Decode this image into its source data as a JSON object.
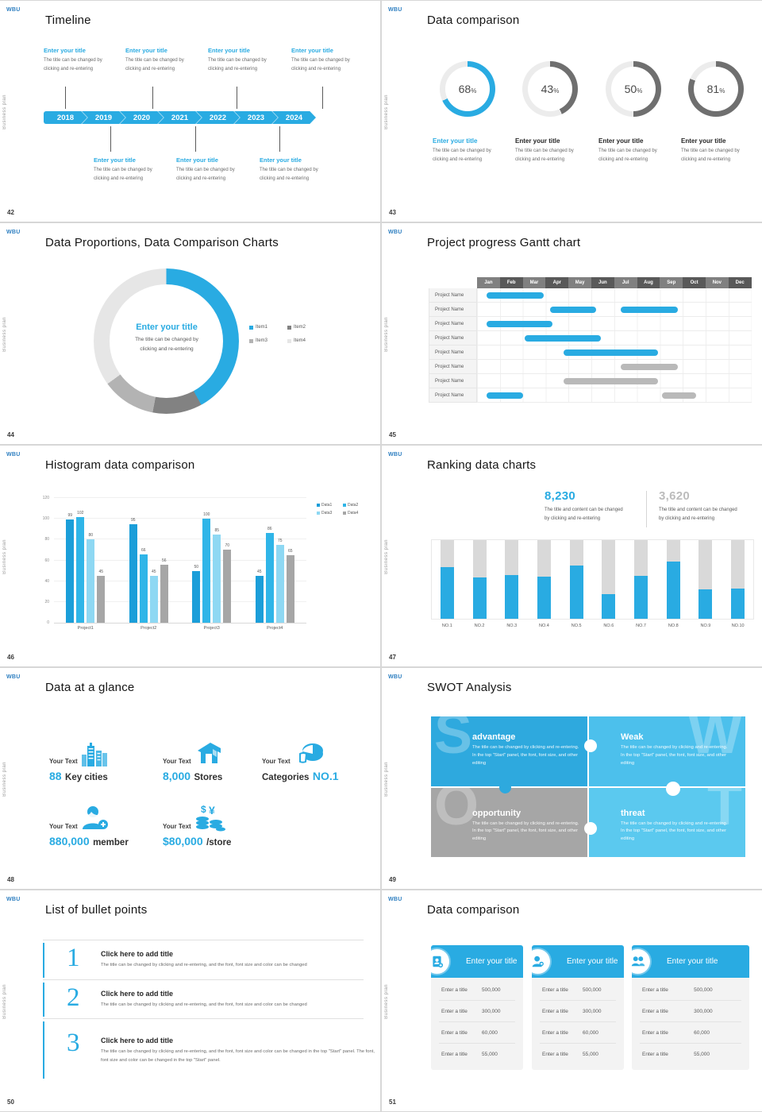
{
  "logo": "WBU",
  "side_label": "Business plan",
  "colors": {
    "accent": "#29abe2",
    "gray_bar": "#b9b9b9",
    "ring_track": "#ececec",
    "ring_gray": "#6f6f6f"
  },
  "placeholder": {
    "title": "Enter your title",
    "body_line1": "The title can be changed by",
    "body_line2": "clicking and re-entering"
  },
  "slides": {
    "s42": {
      "number": "42",
      "title": "Timeline",
      "years": [
        "2018",
        "2019",
        "2020",
        "2021",
        "2022",
        "2023",
        "2024"
      ],
      "entry_title": "Enter your title",
      "entry_line1": "The title can be changed by",
      "entry_line2": "clicking and re-entering"
    },
    "s43": {
      "number": "43",
      "title": "Data comparison",
      "item_title": "Enter your title",
      "item_line1": "The title can be changed by",
      "item_line2": "clicking and re-entering"
    },
    "s44": {
      "number": "44",
      "title": "Data Proportions, Data Comparison Charts",
      "center_title": "Enter your title",
      "center_line1": "The title can be changed by",
      "center_line2": "clicking and re-entering"
    },
    "s45": {
      "number": "45",
      "title": "Project progress Gantt chart"
    },
    "s46": {
      "number": "46",
      "title": "Histogram data comparison"
    },
    "s47": {
      "number": "47",
      "title": "Ranking data charts",
      "stat1": {
        "value": "8,230",
        "line1": "The title and content can be changed",
        "line2": "by clicking and re-entering",
        "color": "#29abe2"
      },
      "stat2": {
        "value": "3,620",
        "line1": "The title and content can be changed",
        "line2": "by clicking and re-entering",
        "color": "#bcbcbc"
      }
    },
    "s48": {
      "number": "48",
      "title": "Data at a glance",
      "stats": [
        {
          "label": "Your Text",
          "value": "88",
          "unit": "Key cities",
          "icon": "city-icon"
        },
        {
          "label": "Your Text",
          "value": "8,000",
          "unit": "Stores",
          "icon": "store-icon"
        },
        {
          "label": "Your Text",
          "prefix": "Categories",
          "value": "NO.1",
          "icon": "pie-icon"
        },
        {
          "label": "Your Text",
          "value": "880,000",
          "unit": "member",
          "icon": "member-add-icon"
        },
        {
          "label": "Your Text",
          "value": "$80,000",
          "unit": "/store",
          "icon": "coins-icon"
        }
      ]
    },
    "s49": {
      "number": "49",
      "title": "SWOT Analysis",
      "quads": [
        {
          "letter": "S",
          "heading": "advantage",
          "body": "The title can be changed by clicking and re-entering. In the top \"Start\" panel, the font, font size, and other editing",
          "color": "#2ea9de",
          "wm_side": "left"
        },
        {
          "letter": "W",
          "heading": "Weak",
          "body": "The title can be changed by clicking and re-entering. In the top \"Start\" panel, the font, font size, and other editing",
          "color": "#4cc0ec",
          "wm_side": "right"
        },
        {
          "letter": "O",
          "heading": "opportunity",
          "body": "The title can be changed by clicking and re-entering. In the top \"Start\" panel, the font, font size, and other editing",
          "color": "#a6a6a6",
          "wm_side": "left"
        },
        {
          "letter": "T",
          "heading": "threat",
          "body": "The title can be changed by clicking and re-entering. In the top \"Start\" panel, the font, font size, and other editing",
          "color": "#5bc9ef",
          "wm_side": "right"
        }
      ]
    },
    "s50": {
      "number": "50",
      "title": "List of bullet points",
      "items": [
        {
          "num": "1",
          "heading": "Click here to add title",
          "body": "The title can be changed by clicking and re-entering, and the font, font size and color can be changed"
        },
        {
          "num": "2",
          "heading": "Click here to add title",
          "body": "The title can be changed by clicking and re-entering, and the font, font size and color can be changed"
        },
        {
          "num": "3",
          "heading": "Click here to add title",
          "body": "The title can be changed by clicking and re-entering, and the font, font size and color can be changed in the top \"Start\" panel. The font, font size and color can be changed in the top \"Start\" panel."
        }
      ]
    },
    "s51": {
      "number": "51",
      "title": "Data comparison",
      "cards": [
        {
          "icon": "idcard-icon",
          "title": "Enter your title",
          "rows": [
            [
              "Enter a title",
              "500,000"
            ],
            [
              "Enter a title",
              "300,000"
            ],
            [
              "Enter a title",
              "60,000"
            ],
            [
              "Enter a title",
              "55,000"
            ]
          ]
        },
        {
          "icon": "person-add-icon",
          "title": "Enter your title",
          "rows": [
            [
              "Enter a title",
              "500,000"
            ],
            [
              "Enter a title",
              "300,000"
            ],
            [
              "Enter a title",
              "60,000"
            ],
            [
              "Enter a title",
              "55,000"
            ]
          ]
        },
        {
          "icon": "people-icon",
          "title": "Enter your title",
          "rows": [
            [
              "Enter a title",
              "500,000"
            ],
            [
              "Enter a title",
              "300,000"
            ],
            [
              "Enter a title",
              "60,000"
            ],
            [
              "Enter a title",
              "55,000"
            ]
          ]
        }
      ]
    }
  },
  "chart_data": [
    {
      "id": "percent-rings",
      "type": "pie",
      "slide": "43",
      "values": [
        68,
        43,
        50,
        81
      ],
      "unit": "%",
      "colors": [
        "#29abe2",
        "#6f6f6f",
        "#6f6f6f",
        "#6f6f6f"
      ],
      "track": "#ececec"
    },
    {
      "id": "proportion-donut",
      "type": "pie",
      "slide": "44",
      "labels": [
        "Item1",
        "Item2",
        "Item3",
        "Item4"
      ],
      "values": [
        42,
        11,
        12,
        35
      ],
      "colors": [
        "#29abe2",
        "#828282",
        "#b3b3b3",
        "#e6e6e6"
      ],
      "legend_position": "right"
    },
    {
      "id": "gantt",
      "type": "table",
      "slide": "45",
      "columns": [
        "Jan",
        "Feb",
        "Mar",
        "Apr",
        "May",
        "Jun",
        "Jul",
        "Aug",
        "Sep",
        "Oct",
        "Nov",
        "Dec"
      ],
      "header_colors": [
        "#808080",
        "#595959"
      ],
      "row_label": "Project Name",
      "rows": [
        [
          {
            "start": 0.4,
            "end": 2.9,
            "color": "blue"
          }
        ],
        [
          {
            "start": 3.2,
            "end": 5.2,
            "color": "blue"
          },
          {
            "start": 6.3,
            "end": 8.8,
            "color": "blue"
          }
        ],
        [
          {
            "start": 0.4,
            "end": 3.3,
            "color": "blue"
          }
        ],
        [
          {
            "start": 2.1,
            "end": 5.4,
            "color": "blue"
          }
        ],
        [
          {
            "start": 3.8,
            "end": 7.9,
            "color": "blue"
          }
        ],
        [
          {
            "start": 6.3,
            "end": 8.8,
            "color": "gray"
          }
        ],
        [
          {
            "start": 3.8,
            "end": 7.9,
            "color": "gray"
          }
        ],
        [
          {
            "start": 0.4,
            "end": 2.0,
            "color": "blue"
          },
          {
            "start": 8.1,
            "end": 9.6,
            "color": "gray"
          }
        ]
      ]
    },
    {
      "id": "histogram",
      "type": "bar",
      "slide": "46",
      "categories": [
        "Project1",
        "Project2",
        "Project3",
        "Project4"
      ],
      "series": [
        {
          "name": "Data1",
          "color": "#1b9ed9",
          "values": [
            99,
            95,
            50,
            45
          ]
        },
        {
          "name": "Data2",
          "color": "#2fb5e8",
          "values": [
            102,
            66,
            100,
            86
          ]
        },
        {
          "name": "Data3",
          "color": "#8ed8f3",
          "values": [
            80,
            45,
            85,
            75
          ]
        },
        {
          "name": "Data4",
          "color": "#a6a6a6",
          "values": [
            45,
            56,
            70,
            65
          ]
        }
      ],
      "ylim": [
        0,
        120
      ],
      "yticks": [
        0,
        20,
        40,
        60,
        80,
        100,
        120
      ],
      "legend_position": "top-right"
    },
    {
      "id": "ranking",
      "type": "bar",
      "slide": "47",
      "categories": [
        "NO.1",
        "NO.2",
        "NO.3",
        "NO.4",
        "NO.5",
        "NO.6",
        "NO.7",
        "NO.8",
        "NO.9",
        "NO.10"
      ],
      "values": [
        66,
        53,
        56,
        54,
        68,
        31,
        55,
        73,
        37,
        38
      ],
      "ylim": [
        0,
        100
      ],
      "bar_color": "#29abe2",
      "track_color": "#d9d9d9"
    }
  ]
}
